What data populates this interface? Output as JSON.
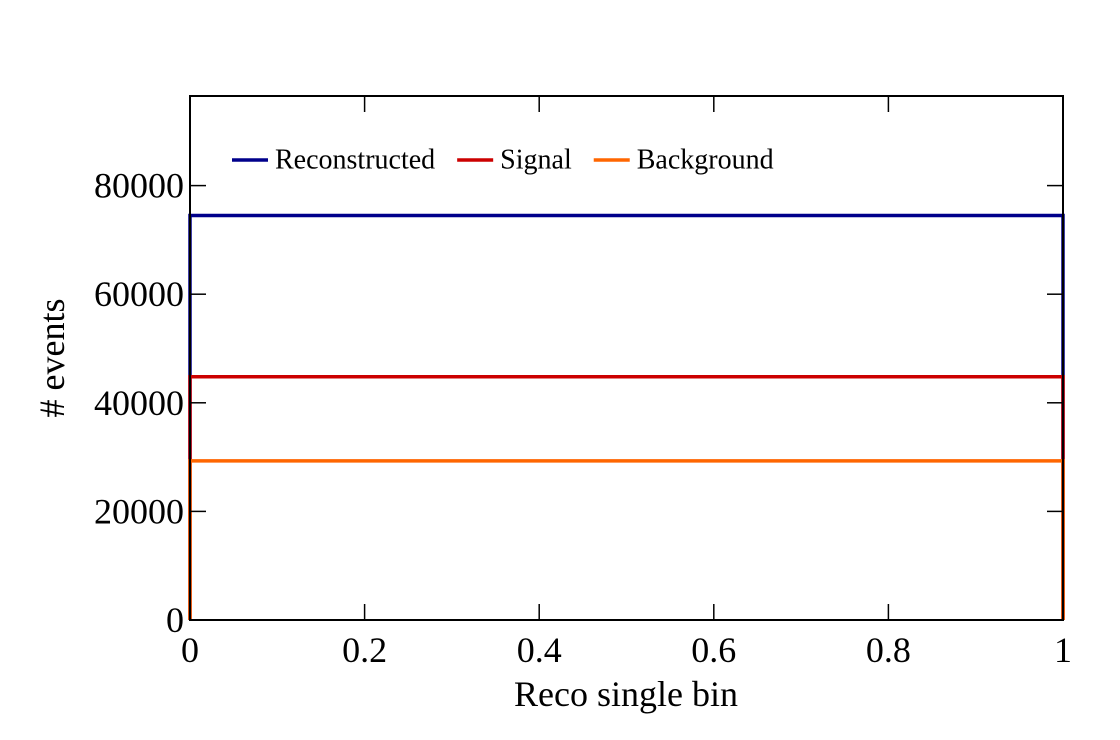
{
  "chart_data": {
    "type": "histogram",
    "xlabel": "Reco single bin",
    "ylabel": "# events",
    "bins": [
      0,
      1
    ],
    "series": [
      {
        "name": "Reconstructed",
        "color": "#00008b",
        "values": [
          74500
        ]
      },
      {
        "name": "Signal",
        "color": "#cc0000",
        "values": [
          44800
        ]
      },
      {
        "name": "Background",
        "color": "#ff6600",
        "values": [
          29300
        ]
      }
    ],
    "xlim": [
      0,
      1
    ],
    "xticks": [
      0,
      0.2,
      0.4,
      0.6,
      0.8,
      1
    ],
    "ylim": [
      0,
      96500
    ],
    "yticks": [
      0,
      20000,
      40000,
      60000,
      80000
    ],
    "legend": "top"
  }
}
